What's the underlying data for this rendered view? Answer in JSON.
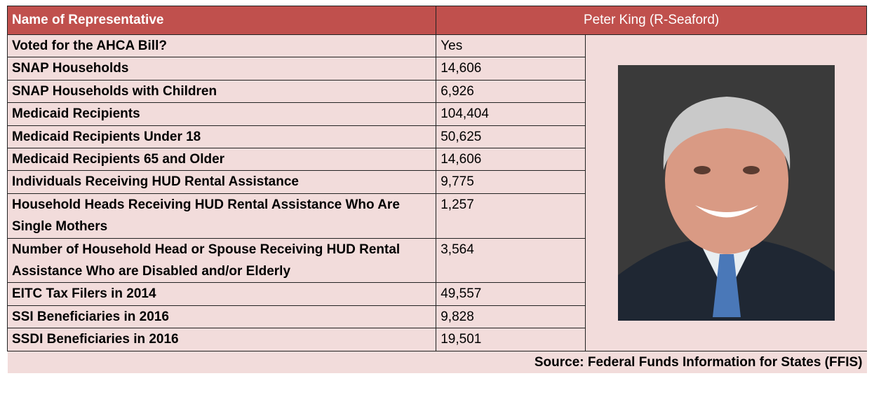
{
  "header": {
    "label": "Name of Representative",
    "value": "Peter King (R-Seaford)"
  },
  "rows": [
    {
      "label": "Voted for the AHCA Bill?",
      "value": "Yes"
    },
    {
      "label": "SNAP Households",
      "value": "14,606"
    },
    {
      "label": "SNAP Households with Children",
      "value": "6,926"
    },
    {
      "label": "Medicaid Recipients",
      "value": "104,404"
    },
    {
      "label": "Medicaid Recipients Under 18",
      "value": "50,625"
    },
    {
      "label": "Medicaid Recipients 65 and Older",
      "value": "14,606"
    },
    {
      "label": "Individuals Receiving HUD Rental Assistance",
      "value": "9,775"
    },
    {
      "label": "Household Heads Receiving HUD Rental Assistance Who Are Single Mothers",
      "value": "1,257"
    },
    {
      "label": "Number of Household Head or Spouse Receiving HUD Rental Assistance Who are Disabled and/or Elderly",
      "value": "3,564"
    },
    {
      "label": "EITC Tax Filers in 2014",
      "value": "49,557"
    },
    {
      "label": "SSI Beneficiaries in 2016",
      "value": "9,828"
    },
    {
      "label": "SSDI Beneficiaries in 2016",
      "value": "19,501"
    }
  ],
  "source": "Source: Federal Funds Information for States (FFIS)"
}
